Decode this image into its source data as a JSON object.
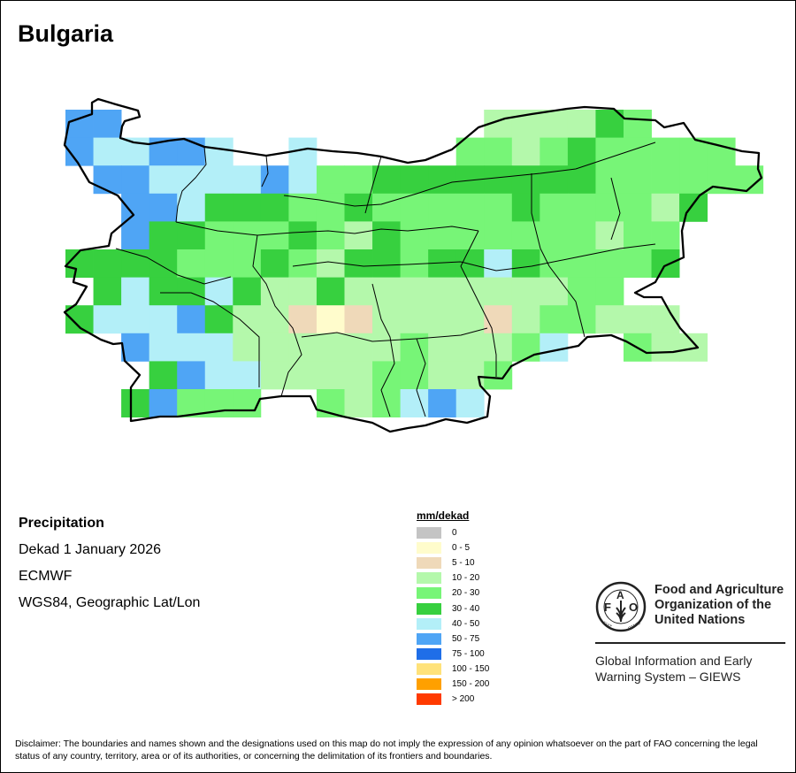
{
  "title": "Bulgaria",
  "info": {
    "variable": "Precipitation",
    "period": "Dekad 1 January 2026",
    "source": "ECMWF",
    "projection": "WGS84, Geographic Lat/Lon"
  },
  "legend": {
    "title": "mm/dekad",
    "classes": [
      {
        "code": "G",
        "label": "0",
        "color": "#c4c4c4"
      },
      {
        "code": "Y",
        "label": "0 - 5",
        "color": "#fffccc"
      },
      {
        "code": "T",
        "label": "5 - 10",
        "color": "#efd9b9"
      },
      {
        "code": "P",
        "label": "10 - 20",
        "color": "#b4f8ab"
      },
      {
        "code": "M",
        "label": "20 - 30",
        "color": "#77f577"
      },
      {
        "code": "D",
        "label": "30 - 40",
        "color": "#37d03f"
      },
      {
        "code": "L",
        "label": "40 - 50",
        "color": "#b3eff8"
      },
      {
        "code": "B",
        "label": "50 - 75",
        "color": "#4fa5f5"
      },
      {
        "code": "K",
        "label": "75 - 100",
        "color": "#1f6ee8"
      },
      {
        "code": "O",
        "label": "100 - 150",
        "color": "#ffe27a"
      },
      {
        "code": "R",
        "label": "150 - 200",
        "color": "#ffa000"
      },
      {
        "code": "X",
        "label": "> 200",
        "color": "#ff3a00"
      }
    ]
  },
  "grid": [
    "BBWWWWWWWWWWWWWPPPPDMWWWW",
    "BLLBBLWWLWWWWWMMPMDMMMMMW",
    "WBBLLLLBLMMDDDDDDDDMMMMMM",
    "WWBBLDDDMMDMMMMMDMMMMPDWW",
    "WWBDDMMMDMPDMMMMMMMPMMWWW",
    "DDDDMMMDMPDDMDDLDMMMMDWWW",
    "WDLDDLDPPDPPPPPPPPMMWWWWW",
    "DLLLBDPPTYTPPPPTPMMPPPWWW",
    "WWBLLLPPPPPPMPPPMLWWMPPWW",
    "WWWDBLLPPPPMMPPMWWWWWWWWW",
    "WWDBMMMWWMPMLBLWWWWWWWWWW"
  ],
  "fao": {
    "emblem_letters": "FAO FIAT PANIS",
    "name_lines": [
      "Food and Agriculture",
      "Organization of the",
      "United Nations"
    ],
    "giews_lines": [
      "Global Information and Early",
      "Warning System – GIEWS"
    ]
  },
  "disclaimer": "Disclaimer: The boundaries and names shown and the designations used on this map do not imply the expression of any opinion whatsoever on the part of FAO concerning the legal status of any country, territory, area or of its authorities, or concerning the delimitation of its frontiers and boundaries."
}
